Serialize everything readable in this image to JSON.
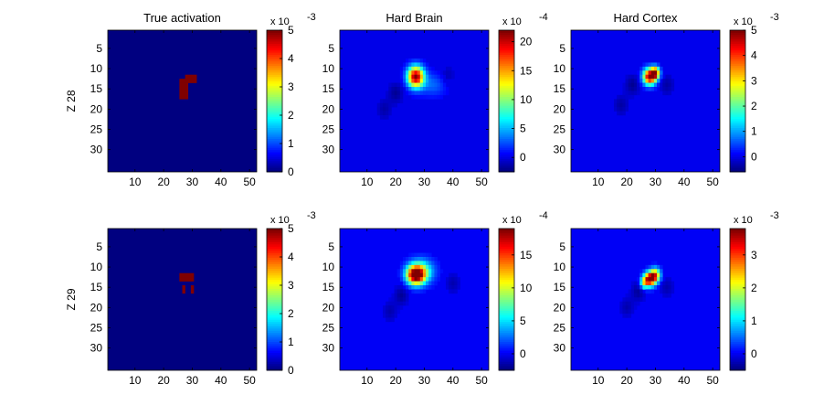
{
  "figure": {
    "columns": [
      "True activation",
      "Hard Brain",
      "Hard Cortex"
    ],
    "rows": [
      "Z 28",
      "Z 29"
    ]
  },
  "chart_data": [
    {
      "type": "heatmap",
      "title": "True activation",
      "ylabel": "Z 28",
      "x_ticks": [
        "10",
        "20",
        "30",
        "40",
        "50"
      ],
      "y_ticks": [
        "5",
        "10",
        "15",
        "20",
        "25",
        "30"
      ],
      "xlim": [
        0.5,
        52.5
      ],
      "ylim": [
        0.5,
        35.5
      ],
      "colorbar": {
        "exponent_label": "x 10",
        "exponent": "-3",
        "ticks": [
          "0",
          "1",
          "2",
          "3",
          "4",
          "5"
        ],
        "tick_values": [
          0,
          1,
          2,
          3,
          4,
          5
        ],
        "range": [
          0,
          5
        ]
      },
      "background_value": 0,
      "regions": [
        {
          "x": [
            28,
            31
          ],
          "y": [
            12,
            13
          ],
          "value": 5
        },
        {
          "x": [
            26,
            28
          ],
          "y": [
            13,
            17
          ],
          "value": 5
        }
      ]
    },
    {
      "type": "heatmap",
      "title": "Hard Brain",
      "ylabel": "",
      "x_ticks": [
        "10",
        "20",
        "30",
        "40",
        "50"
      ],
      "y_ticks": [
        "5",
        "10",
        "15",
        "20",
        "25",
        "30"
      ],
      "xlim": [
        0.5,
        52.5
      ],
      "ylim": [
        0.5,
        35.5
      ],
      "colorbar": {
        "exponent_label": "x 10",
        "exponent": "-4",
        "ticks": [
          "0",
          "5",
          "10",
          "15",
          "20"
        ],
        "tick_values": [
          0,
          5,
          10,
          15,
          20
        ],
        "range": [
          -2.5,
          22
        ]
      },
      "background_value": 0,
      "blobs": [
        {
          "x": 27,
          "y": 12,
          "sx": 2.0,
          "sy": 1.8,
          "peak": 22
        },
        {
          "x": 33,
          "y": 14,
          "sx": 3.5,
          "sy": 2.0,
          "peak": 3
        }
      ],
      "negatives": [
        {
          "x": 20,
          "y": 16,
          "value": -2
        },
        {
          "x": 16,
          "y": 20,
          "value": -1.5
        },
        {
          "x": 38,
          "y": 12,
          "value": -1.5
        }
      ]
    },
    {
      "type": "heatmap",
      "title": "Hard Cortex",
      "ylabel": "",
      "x_ticks": [
        "10",
        "20",
        "30",
        "40",
        "50"
      ],
      "y_ticks": [
        "5",
        "10",
        "15",
        "20",
        "25",
        "30"
      ],
      "xlim": [
        0.5,
        52.5
      ],
      "ylim": [
        0.5,
        35.5
      ],
      "colorbar": {
        "exponent_label": "x 10",
        "exponent": "-3",
        "ticks": [
          "0",
          "1",
          "2",
          "3",
          "4",
          "5"
        ],
        "tick_values": [
          0,
          1,
          2,
          3,
          4,
          5
        ],
        "range": [
          -0.6,
          5
        ]
      },
      "background_value": 0,
      "blobs": [
        {
          "x": 28,
          "y": 12,
          "sx": 1.6,
          "sy": 1.4,
          "peak": 5
        },
        {
          "x": 30,
          "y": 11,
          "sx": 1.0,
          "sy": 1.0,
          "peak": 4
        }
      ],
      "negatives": [
        {
          "x": 22,
          "y": 14,
          "value": -0.5
        },
        {
          "x": 34,
          "y": 14,
          "value": -0.4
        },
        {
          "x": 18,
          "y": 19,
          "value": -0.4
        }
      ]
    },
    {
      "type": "heatmap",
      "title": "",
      "ylabel": "Z 29",
      "x_ticks": [
        "10",
        "20",
        "30",
        "40",
        "50"
      ],
      "y_ticks": [
        "5",
        "10",
        "15",
        "20",
        "25",
        "30"
      ],
      "xlim": [
        0.5,
        52.5
      ],
      "ylim": [
        0.5,
        35.5
      ],
      "colorbar": {
        "exponent_label": "x 10",
        "exponent": "-3",
        "ticks": [
          "0",
          "1",
          "2",
          "3",
          "4",
          "5"
        ],
        "tick_values": [
          0,
          1,
          2,
          3,
          4,
          5
        ],
        "range": [
          0,
          5
        ]
      },
      "background_value": 0,
      "regions": [
        {
          "x": [
            26,
            30
          ],
          "y": [
            12,
            13
          ],
          "value": 5
        },
        {
          "x": [
            27,
            27
          ],
          "y": [
            15,
            16
          ],
          "value": 5
        },
        {
          "x": [
            30,
            30
          ],
          "y": [
            15,
            16
          ],
          "value": 5
        }
      ]
    },
    {
      "type": "heatmap",
      "title": "",
      "ylabel": "",
      "x_ticks": [
        "10",
        "20",
        "30",
        "40",
        "50"
      ],
      "y_ticks": [
        "5",
        "10",
        "15",
        "20",
        "25",
        "30"
      ],
      "xlim": [
        0.5,
        52.5
      ],
      "ylim": [
        0.5,
        35.5
      ],
      "colorbar": {
        "exponent_label": "x 10",
        "exponent": "-4",
        "ticks": [
          "0",
          "5",
          "10",
          "15"
        ],
        "tick_values": [
          0,
          5,
          10,
          15
        ],
        "range": [
          -2.5,
          19
        ]
      },
      "background_value": 0,
      "blobs": [
        {
          "x": 27,
          "y": 12,
          "sx": 2.2,
          "sy": 1.6,
          "peak": 19
        },
        {
          "x": 29,
          "y": 11,
          "sx": 3.0,
          "sy": 2.0,
          "peak": 7
        }
      ],
      "negatives": [
        {
          "x": 22,
          "y": 17,
          "value": -2
        },
        {
          "x": 18,
          "y": 21,
          "value": -1.5
        },
        {
          "x": 40,
          "y": 14,
          "value": -1.5
        }
      ]
    },
    {
      "type": "heatmap",
      "title": "",
      "ylabel": "",
      "x_ticks": [
        "10",
        "20",
        "30",
        "40",
        "50"
      ],
      "y_ticks": [
        "5",
        "10",
        "15",
        "20",
        "25",
        "30"
      ],
      "xlim": [
        0.5,
        52.5
      ],
      "ylim": [
        0.5,
        35.5
      ],
      "colorbar": {
        "exponent_label": "x 10",
        "exponent": "-3",
        "ticks": [
          "0",
          "1",
          "2",
          "3"
        ],
        "tick_values": [
          0,
          1,
          2,
          3
        ],
        "range": [
          -0.5,
          3.8
        ]
      },
      "background_value": 0,
      "blobs": [
        {
          "x": 28,
          "y": 13,
          "sx": 1.4,
          "sy": 1.2,
          "peak": 3.8
        },
        {
          "x": 30,
          "y": 12,
          "sx": 1.2,
          "sy": 1.2,
          "peak": 2.5
        },
        {
          "x": 26,
          "y": 14,
          "sx": 1.0,
          "sy": 1.0,
          "peak": 1.5
        }
      ],
      "negatives": [
        {
          "x": 24,
          "y": 16,
          "value": -0.4
        },
        {
          "x": 34,
          "y": 15,
          "value": -0.3
        },
        {
          "x": 20,
          "y": 20,
          "value": -0.3
        }
      ]
    }
  ]
}
